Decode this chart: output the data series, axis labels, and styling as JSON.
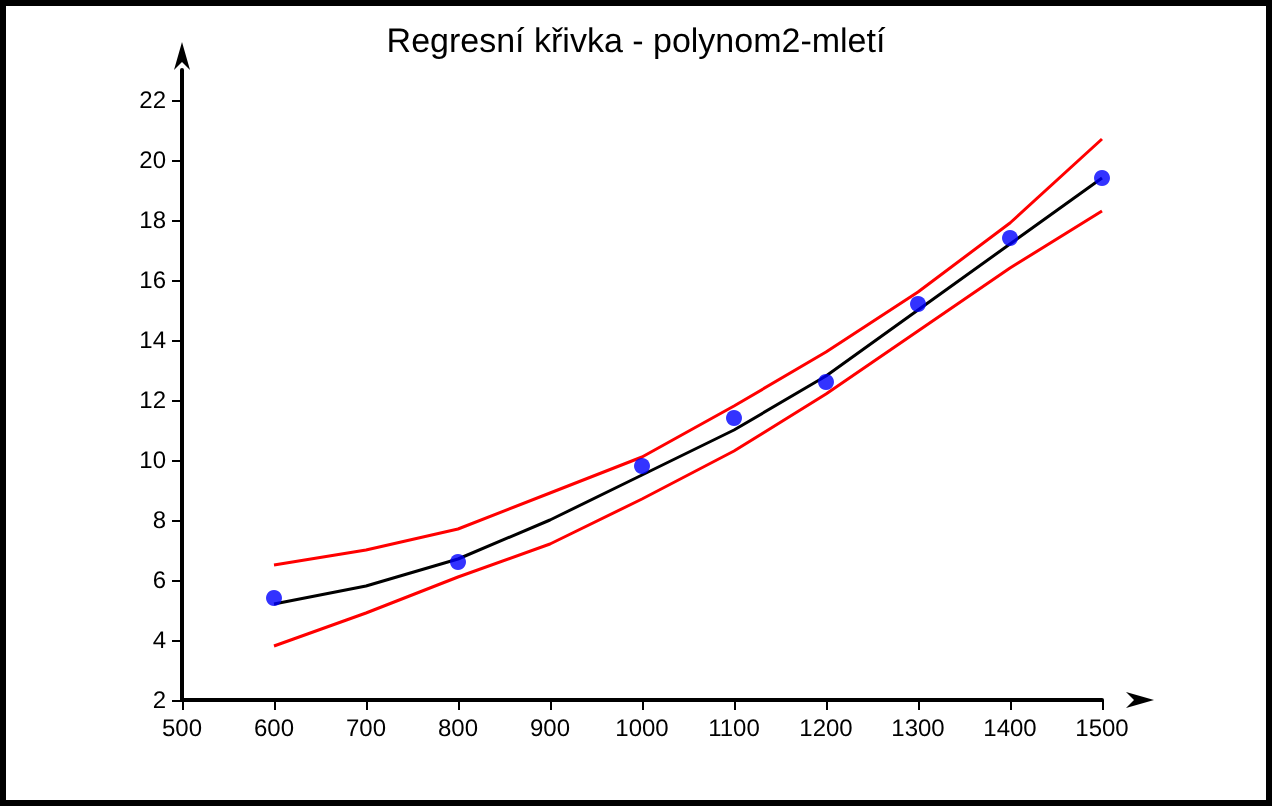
{
  "chart_data": {
    "type": "scatter",
    "title": "Regresní křivka - polynom2-mletí",
    "xlim": [
      500,
      1500
    ],
    "xticks": [
      500,
      600,
      700,
      800,
      900,
      1000,
      1100,
      1200,
      1300,
      1400,
      1500
    ],
    "ylim": [
      2,
      23
    ],
    "yticks": [
      2,
      4,
      6,
      8,
      10,
      12,
      14,
      16,
      18,
      20,
      22
    ],
    "grid": false,
    "series": [
      {
        "color": "#0000ff",
        "marker": "circle",
        "x": [
          600,
          800,
          1000,
          1100,
          1200,
          1300,
          1400,
          1500
        ],
        "values": [
          5.4,
          6.6,
          9.8,
          11.4,
          12.6,
          15.2,
          17.4,
          19.4
        ]
      },
      {
        "type": "line",
        "color": "#000000",
        "marker": "none",
        "x": [
          600,
          700,
          800,
          900,
          1000,
          1100,
          1200,
          1300,
          1400,
          1500
        ],
        "values": [
          5.2,
          5.8,
          6.7,
          8.0,
          9.5,
          11.0,
          12.8,
          15.0,
          17.2,
          19.4
        ]
      },
      {
        "type": "line",
        "color": "#ff0000",
        "marker": "none",
        "x": [
          600,
          700,
          800,
          900,
          1000,
          1100,
          1200,
          1300,
          1400,
          1500
        ],
        "values": [
          6.5,
          7.0,
          7.7,
          8.9,
          10.1,
          11.8,
          13.6,
          15.6,
          17.9,
          20.7
        ]
      },
      {
        "type": "line",
        "color": "#ff0000",
        "marker": "none",
        "x": [
          600,
          700,
          800,
          900,
          1000,
          1100,
          1200,
          1300,
          1400,
          1500
        ],
        "values": [
          3.8,
          4.9,
          6.1,
          7.2,
          8.7,
          10.3,
          12.2,
          14.3,
          16.4,
          18.3
        ]
      }
    ]
  }
}
